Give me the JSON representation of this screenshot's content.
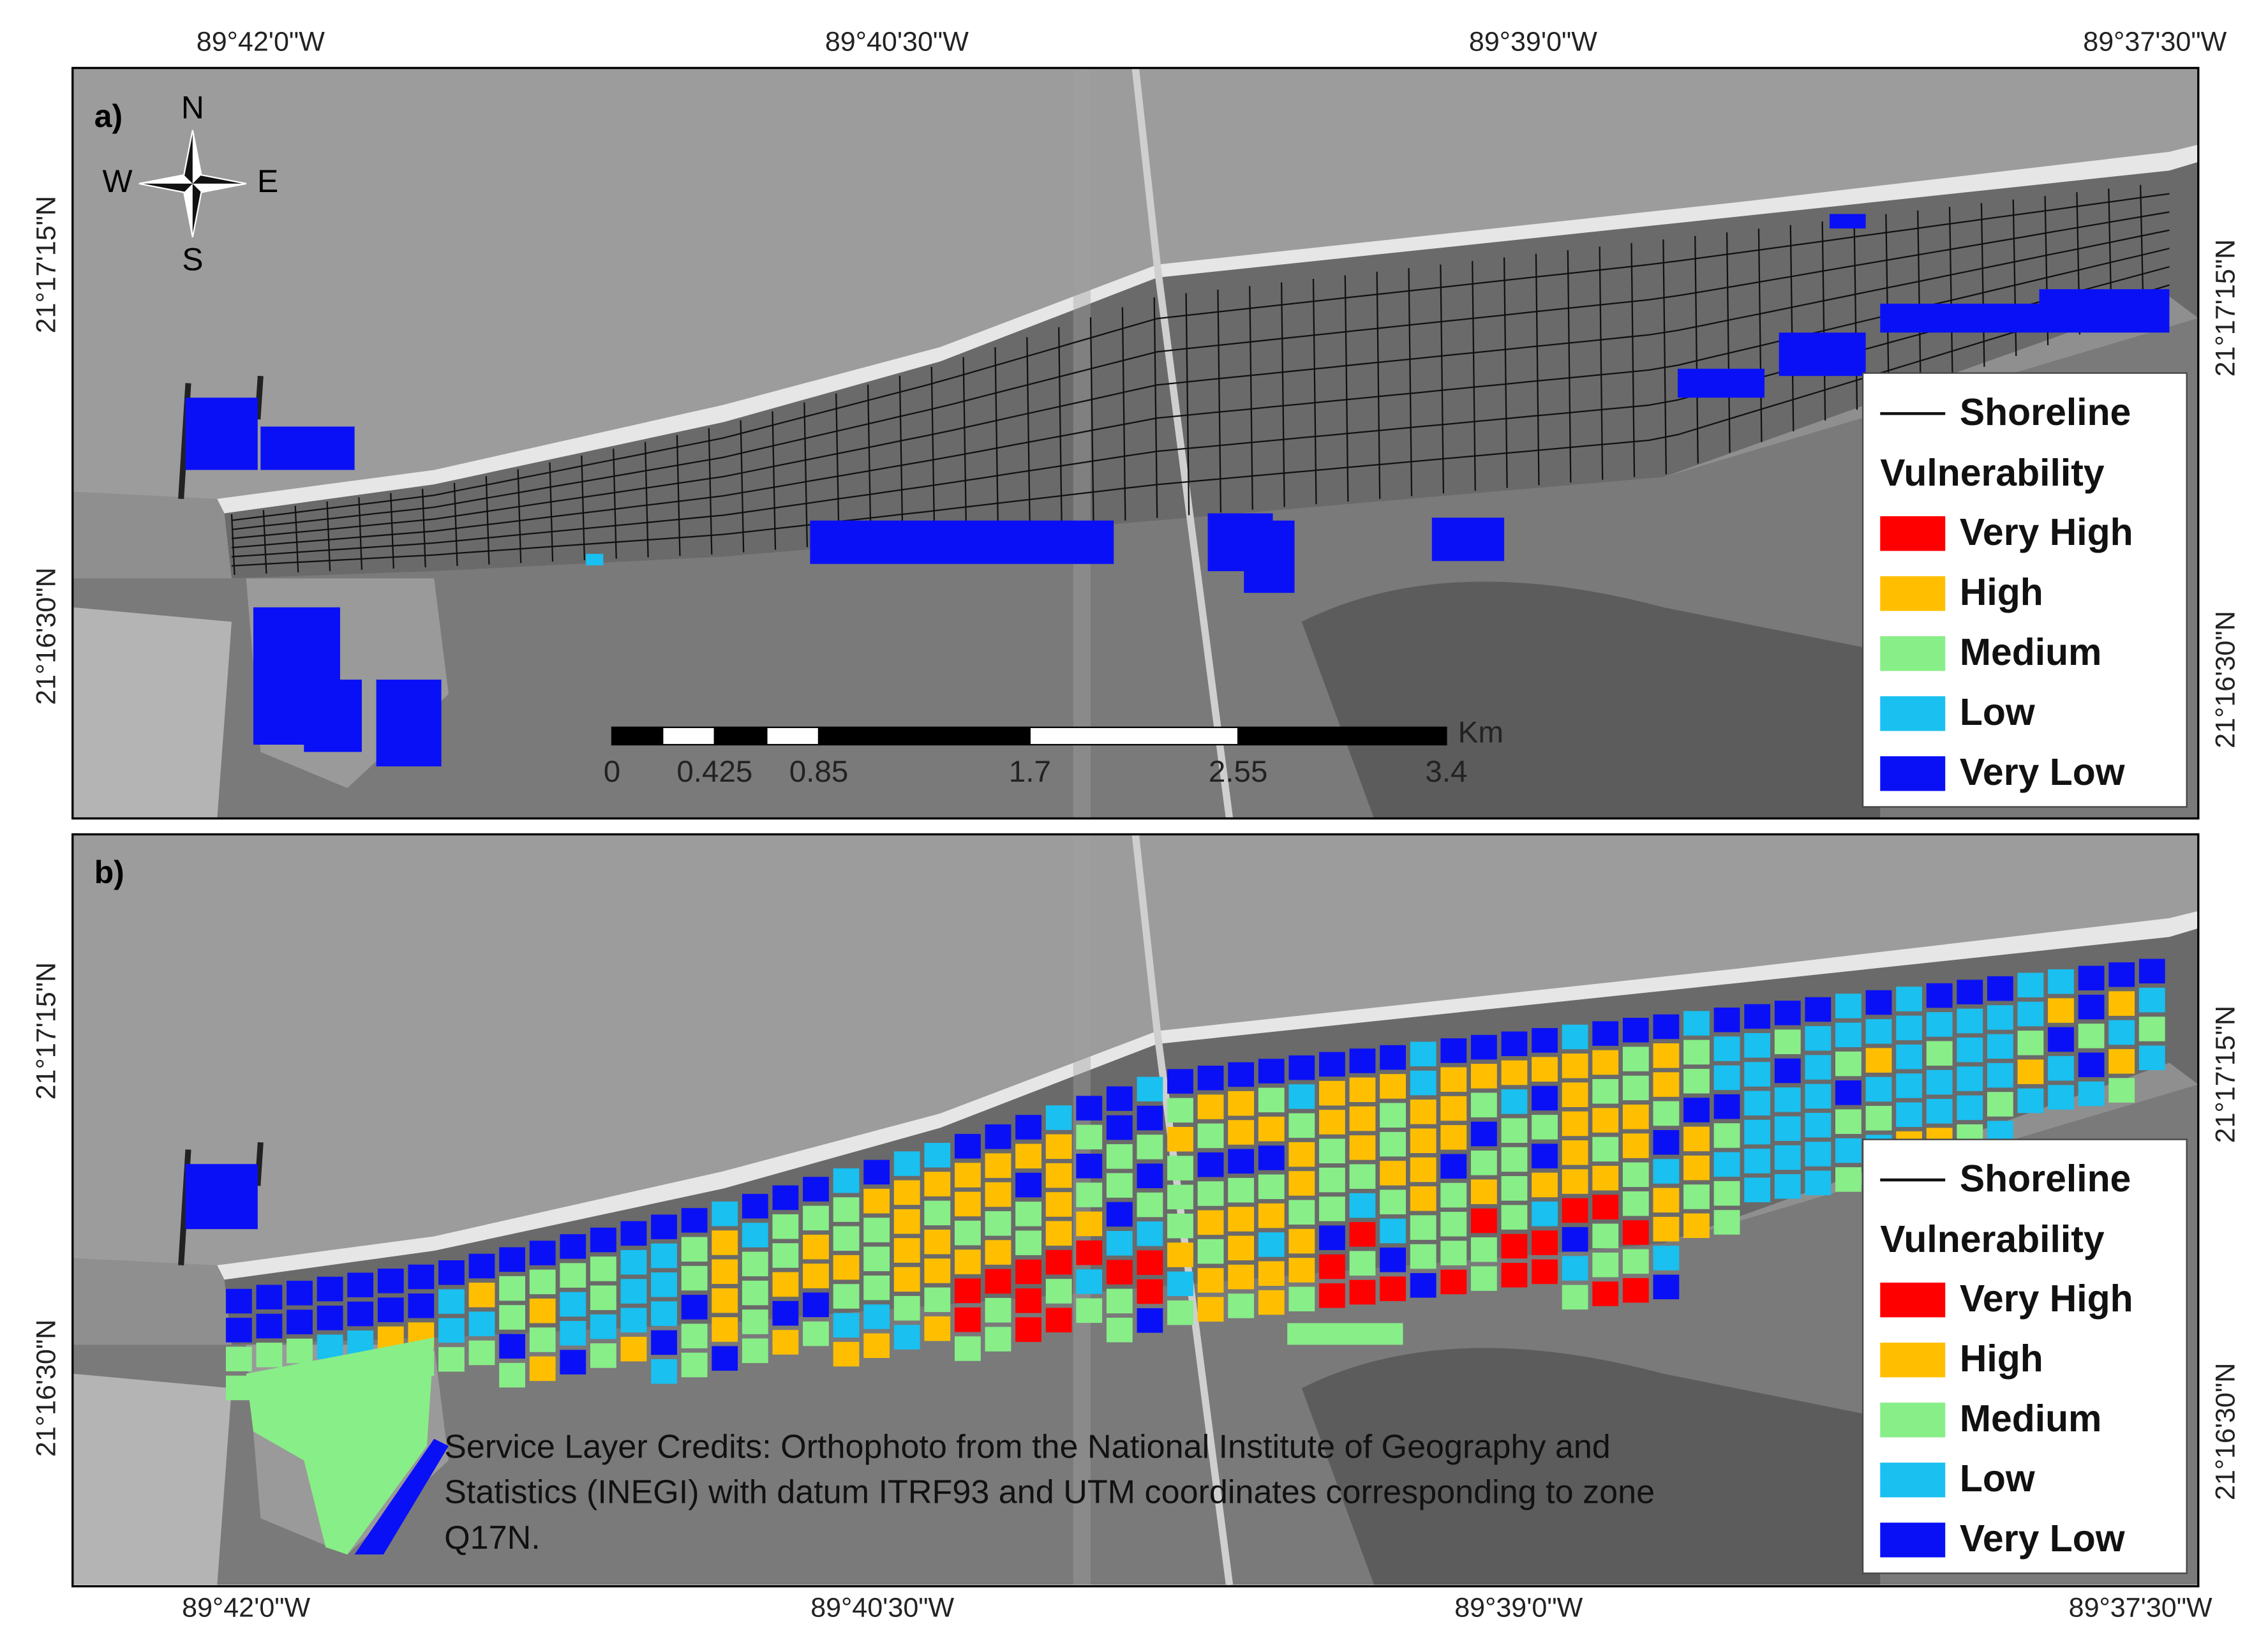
{
  "top_axis": [
    "89°42'0\"W",
    "89°40'30\"W",
    "89°39'0\"W",
    "89°37'30\"W"
  ],
  "bottom_axis": [
    "89°42'0\"W",
    "89°40'30\"W",
    "89°39'0\"W",
    "89°37'30\"W"
  ],
  "left_axis": [
    "21°17'15\"N",
    "21°16'30\"N"
  ],
  "right_axis": [
    "21°17'15\"N",
    "21°16'30\"N"
  ],
  "panels": [
    {
      "label": "a)"
    },
    {
      "label": "b)"
    }
  ],
  "compass": {
    "n": "N",
    "s": "S",
    "e": "E",
    "w": "W"
  },
  "scale_bar": {
    "labels": [
      "0",
      "0.425",
      "0.85",
      "1.7",
      "2.55",
      "3.4"
    ],
    "unit": "Km"
  },
  "legend": {
    "shoreline": "Shoreline",
    "title": "Vulnerability",
    "classes": [
      {
        "name": "Very High",
        "color": "#ff0000"
      },
      {
        "name": "High",
        "color": "#ffbf00"
      },
      {
        "name": "Medium",
        "color": "#88ee88"
      },
      {
        "name": "Low",
        "color": "#19c0f0"
      },
      {
        "name": "Very Low",
        "color": "#0a10f5"
      }
    ]
  },
  "credits": [
    "Service Layer Credits: Orthophoto from the National Institute of Geography and",
    "Statistics (INEGI) with datum ITRF93 and UTM coordinates corresponding to zone",
    "Q17N."
  ]
}
